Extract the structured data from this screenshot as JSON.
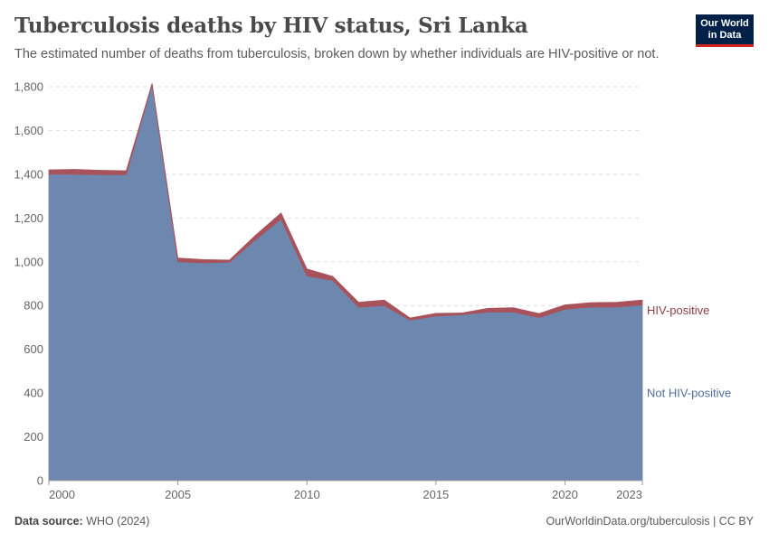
{
  "header": {
    "title": "Tuberculosis deaths by HIV status, Sri Lanka",
    "subtitle": "The estimated number of deaths from tuberculosis, broken down by whether individuals are HIV-positive or not."
  },
  "logo": {
    "line1": "Our World",
    "line2": "in Data",
    "bg_color": "#002147",
    "accent_color": "#ce261e"
  },
  "footer": {
    "source_label": "Data source:",
    "source_value": "WHO (2024)",
    "credit": "OurWorldinData.org/tuberculosis | CC BY"
  },
  "chart_data": {
    "type": "area",
    "stacked": true,
    "x": [
      2000,
      2001,
      2002,
      2003,
      2004,
      2005,
      2006,
      2007,
      2008,
      2009,
      2010,
      2011,
      2012,
      2013,
      2014,
      2015,
      2016,
      2017,
      2018,
      2019,
      2020,
      2021,
      2022,
      2023
    ],
    "series": [
      {
        "name": "Not HIV-positive",
        "color": "#6d87ae",
        "values": [
          1400,
          1400,
          1398,
          1398,
          1810,
          1000,
          995,
          998,
          1100,
          1195,
          935,
          915,
          793,
          800,
          733,
          752,
          758,
          770,
          770,
          745,
          783,
          793,
          793,
          803
        ]
      },
      {
        "name": "HIV-positive",
        "color": "#a8535c",
        "values": [
          20,
          22,
          20,
          18,
          5,
          17,
          15,
          10,
          20,
          28,
          32,
          18,
          22,
          25,
          10,
          12,
          8,
          17,
          20,
          18,
          20,
          20,
          22,
          22
        ]
      }
    ],
    "ylim": [
      0,
      1800
    ],
    "yticks": [
      0,
      200,
      400,
      600,
      800,
      "1,000",
      "1,200",
      "1,400",
      "1,600",
      "1,800"
    ],
    "yticks_values": [
      0,
      200,
      400,
      600,
      800,
      1000,
      1200,
      1400,
      1600,
      1800
    ],
    "xticks": [
      2000,
      2005,
      2010,
      2015,
      2020,
      2023
    ],
    "grid": "horizontal-dashed",
    "legend": "right, inline labels"
  }
}
